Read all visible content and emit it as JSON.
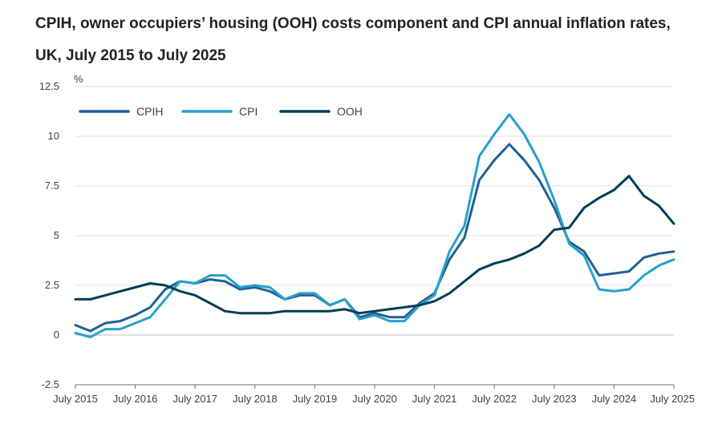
{
  "chart_data": {
    "type": "line",
    "title": "CPIH, owner occupiers’ housing (OOH) costs component and CPI annual inflation rates, UK, July 2015 to July 2025",
    "ylabel": "%",
    "xlabel": "",
    "ylim": [
      -2.5,
      12.5
    ],
    "y_ticks": [
      -2.5,
      0,
      2.5,
      5,
      7.5,
      10,
      12.5
    ],
    "y_tick_labels": [
      "-2.5",
      "0",
      "2.5",
      "5",
      "7.5",
      "10",
      "12.5"
    ],
    "x_start": "July 2015",
    "x_end": "July 2025",
    "x_tick_labels": [
      "July 2015",
      "July 2016",
      "July 2017",
      "July 2018",
      "July 2019",
      "July 2020",
      "July 2021",
      "July 2022",
      "July 2023",
      "July 2024",
      "July 2025"
    ],
    "grid": "horizontal",
    "legend_position": "top-left",
    "series": [
      {
        "name": "CPIH",
        "color": "#206095",
        "x": [
          "2015-07",
          "2015-10",
          "2016-01",
          "2016-04",
          "2016-07",
          "2016-10",
          "2017-01",
          "2017-04",
          "2017-07",
          "2017-10",
          "2018-01",
          "2018-04",
          "2018-07",
          "2018-10",
          "2019-01",
          "2019-04",
          "2019-07",
          "2019-10",
          "2020-01",
          "2020-04",
          "2020-07",
          "2020-10",
          "2021-01",
          "2021-04",
          "2021-07",
          "2021-10",
          "2022-01",
          "2022-04",
          "2022-07",
          "2022-10",
          "2023-01",
          "2023-04",
          "2023-07",
          "2023-10",
          "2024-01",
          "2024-04",
          "2024-07",
          "2024-10",
          "2025-01",
          "2025-04",
          "2025-07"
        ],
        "values": [
          0.5,
          0.2,
          0.6,
          0.7,
          1.0,
          1.4,
          2.3,
          2.7,
          2.6,
          2.8,
          2.7,
          2.3,
          2.4,
          2.2,
          1.8,
          2.0,
          2.0,
          1.5,
          1.8,
          0.9,
          1.1,
          0.9,
          0.9,
          1.6,
          2.1,
          3.8,
          4.9,
          7.8,
          8.8,
          9.6,
          8.8,
          7.8,
          6.4,
          4.7,
          4.2,
          3.0,
          3.1,
          3.2,
          3.9,
          4.1,
          4.2
        ]
      },
      {
        "name": "CPI",
        "color": "#27a0cc",
        "x": [
          "2015-07",
          "2015-10",
          "2016-01",
          "2016-04",
          "2016-07",
          "2016-10",
          "2017-01",
          "2017-04",
          "2017-07",
          "2017-10",
          "2018-01",
          "2018-04",
          "2018-07",
          "2018-10",
          "2019-01",
          "2019-04",
          "2019-07",
          "2019-10",
          "2020-01",
          "2020-04",
          "2020-07",
          "2020-10",
          "2021-01",
          "2021-04",
          "2021-07",
          "2021-10",
          "2022-01",
          "2022-04",
          "2022-07",
          "2022-10",
          "2023-01",
          "2023-04",
          "2023-07",
          "2023-10",
          "2024-01",
          "2024-04",
          "2024-07",
          "2024-10",
          "2025-01",
          "2025-04",
          "2025-07"
        ],
        "values": [
          0.1,
          -0.1,
          0.3,
          0.3,
          0.6,
          0.9,
          1.8,
          2.7,
          2.6,
          3.0,
          3.0,
          2.4,
          2.5,
          2.4,
          1.8,
          2.1,
          2.1,
          1.5,
          1.8,
          0.8,
          1.0,
          0.7,
          0.7,
          1.5,
          2.0,
          4.2,
          5.5,
          9.0,
          10.1,
          11.1,
          10.1,
          8.7,
          6.8,
          4.6,
          4.0,
          2.3,
          2.2,
          2.3,
          3.0,
          3.5,
          3.8
        ]
      },
      {
        "name": "OOH",
        "color": "#003c57",
        "x": [
          "2015-07",
          "2015-10",
          "2016-01",
          "2016-04",
          "2016-07",
          "2016-10",
          "2017-01",
          "2017-04",
          "2017-07",
          "2017-10",
          "2018-01",
          "2018-04",
          "2018-07",
          "2018-10",
          "2019-01",
          "2019-04",
          "2019-07",
          "2019-10",
          "2020-01",
          "2020-04",
          "2020-07",
          "2020-10",
          "2021-01",
          "2021-04",
          "2021-07",
          "2021-10",
          "2022-01",
          "2022-04",
          "2022-07",
          "2022-10",
          "2023-01",
          "2023-04",
          "2023-07",
          "2023-10",
          "2024-01",
          "2024-04",
          "2024-07",
          "2024-10",
          "2025-01",
          "2025-04",
          "2025-07"
        ],
        "values": [
          1.8,
          1.8,
          2.0,
          2.2,
          2.4,
          2.6,
          2.5,
          2.2,
          2.0,
          1.6,
          1.2,
          1.1,
          1.1,
          1.1,
          1.2,
          1.2,
          1.2,
          1.2,
          1.3,
          1.1,
          1.2,
          1.3,
          1.4,
          1.5,
          1.7,
          2.1,
          2.7,
          3.3,
          3.6,
          3.8,
          4.1,
          4.5,
          5.3,
          5.4,
          6.4,
          6.9,
          7.3,
          8.0,
          7.0,
          6.5,
          5.6
        ]
      }
    ]
  }
}
